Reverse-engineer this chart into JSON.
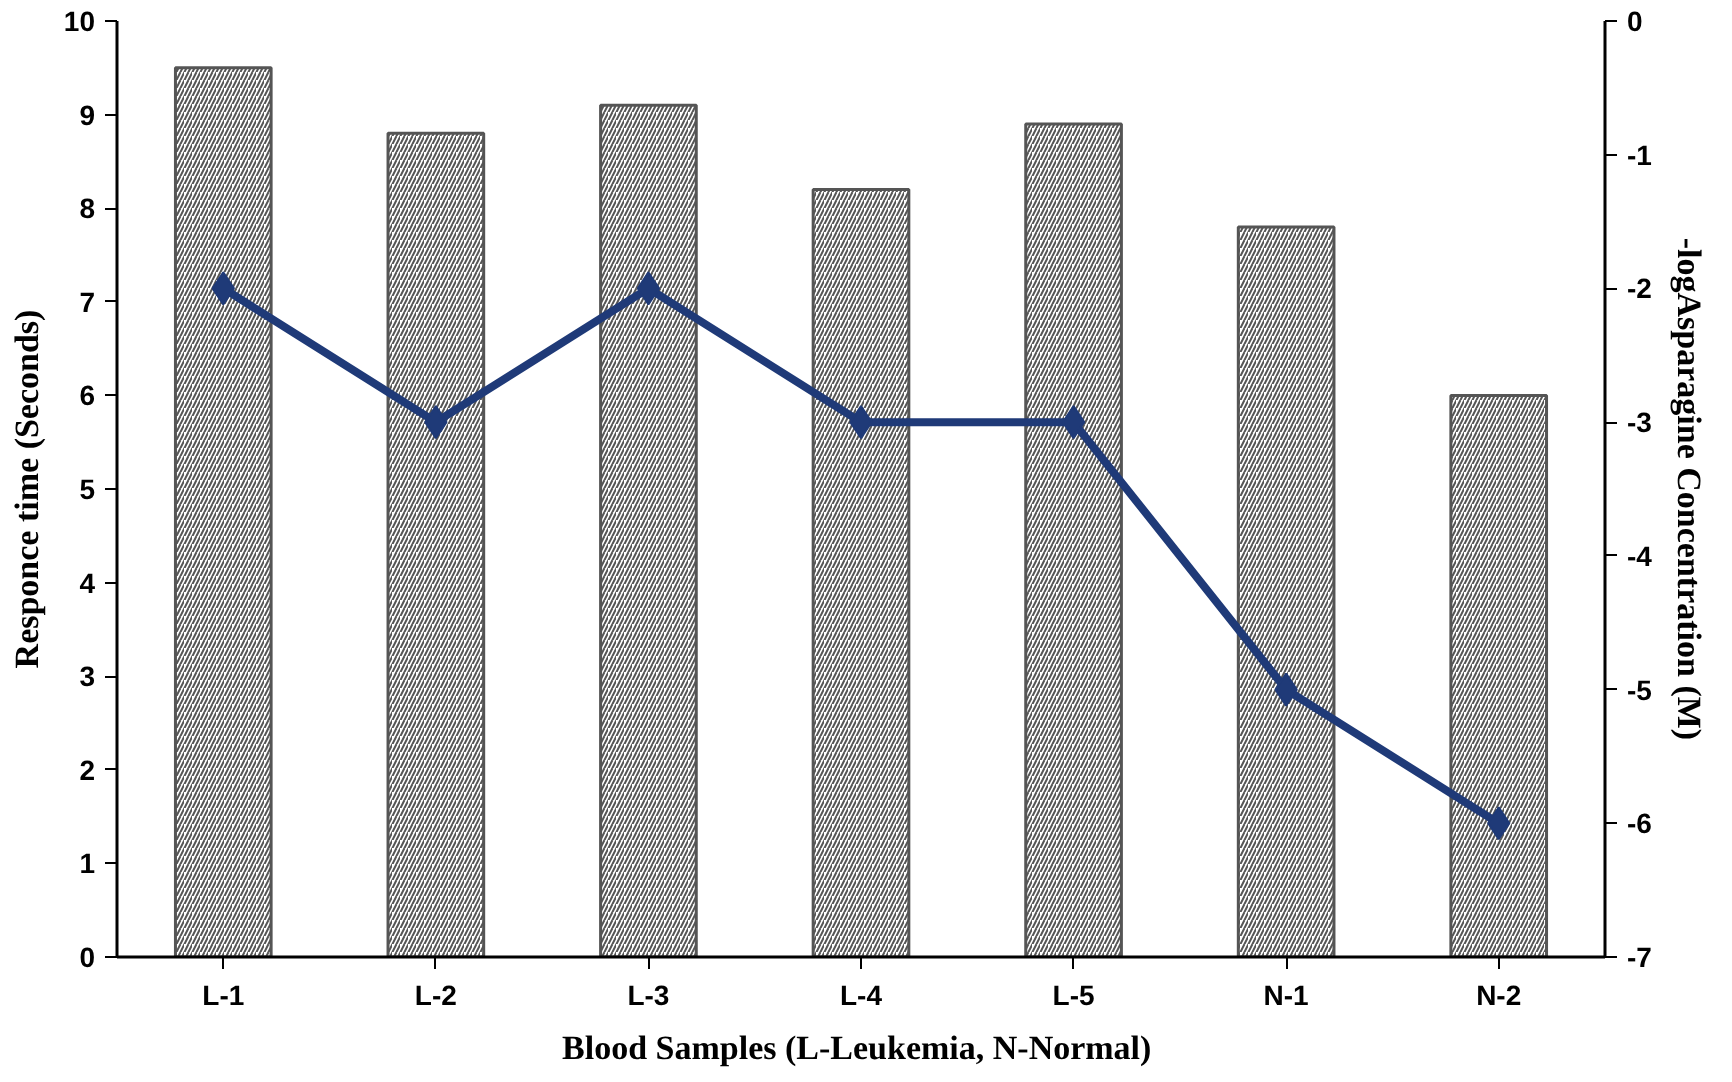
{
  "chart_data": {
    "type": "bar",
    "xlabel": "Blood Samples (L-Leukemia,  N-Normal)",
    "ylabel": "Responce time (Seconds)",
    "y2label": "-logAsparagine Concentration (M)",
    "categories": [
      "L-1",
      "L-2",
      "L-3",
      "L-4",
      "L-5",
      "N-1",
      "N-2"
    ],
    "series": [
      {
        "color": "#555555",
        "values": [
          9.5,
          8.8,
          9.1,
          8.2,
          8.9,
          7.8,
          6.0
        ]
      },
      {
        "type": "line",
        "axis": "y2",
        "color": "#1f3a78",
        "marker": "diamond",
        "values": [
          -2,
          -3,
          -2,
          -3,
          -3,
          -5,
          -6
        ]
      }
    ],
    "ylim": [
      0,
      10
    ],
    "yticks": [
      0,
      1,
      2,
      3,
      4,
      5,
      6,
      7,
      8,
      9,
      10
    ],
    "y2lim": [
      -7,
      0
    ],
    "y2ticks": [
      -7,
      -6,
      -5,
      -4,
      -3,
      -2,
      -1,
      0
    ],
    "grid": false
  }
}
